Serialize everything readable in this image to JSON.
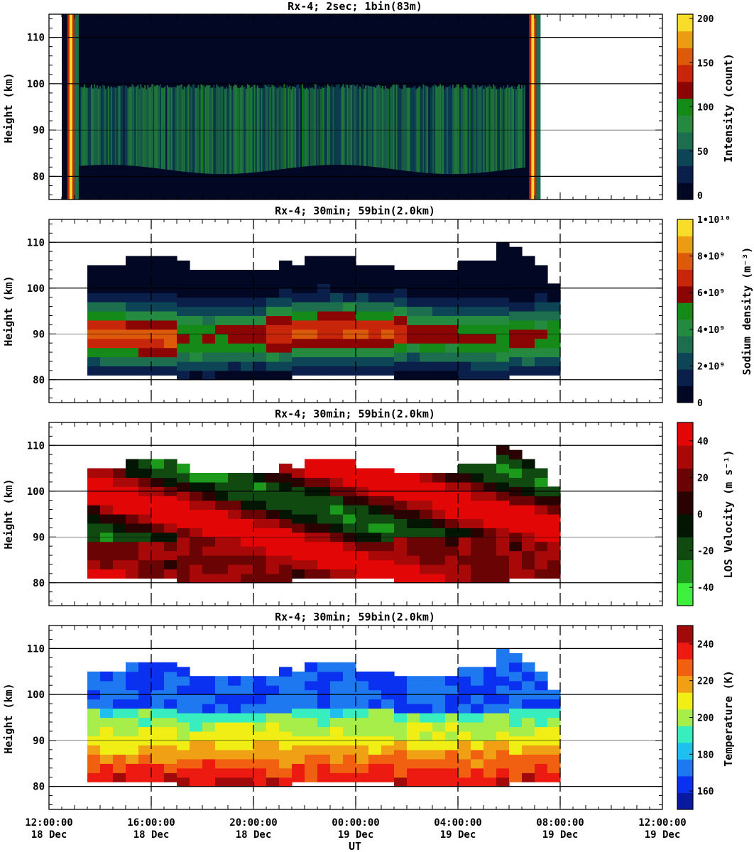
{
  "figure": {
    "x_label": "UT",
    "x_ticks": [
      {
        "time": "12:00:00",
        "date": "18 Dec"
      },
      {
        "time": "16:00:00",
        "date": "18 Dec"
      },
      {
        "time": "20:00:00",
        "date": "18 Dec"
      },
      {
        "time": "00:00:00",
        "date": "19 Dec"
      },
      {
        "time": "04:00:00",
        "date": "19 Dec"
      },
      {
        "time": "08:00:00",
        "date": "19 Dec"
      },
      {
        "time": "12:00:00",
        "date": "19 Dec"
      }
    ]
  },
  "chart_data": [
    {
      "type": "heatmap",
      "title": "Rx-4;  2sec; 1bin(83m)",
      "xlabel": "",
      "ylabel": "Height (km)",
      "x_range_hours_ut": [
        12,
        36
      ],
      "data_extent_hours_ut": [
        12.5,
        31.2
      ],
      "ylim": [
        75,
        115
      ],
      "y_ticks": [
        80,
        90,
        100,
        110
      ],
      "colorbar": {
        "label": "Intensity (count)",
        "range": [
          0,
          200
        ],
        "ticks": [
          "0",
          "50",
          "100",
          "150",
          "200"
        ],
        "colors": [
          "#020824",
          "#0a1f4a",
          "#0d4556",
          "#1d6e4e",
          "#238a3f",
          "#168a18",
          "#8c0505",
          "#c8260a",
          "#dc5a0a",
          "#ec9c14",
          "#f8dc2a"
        ]
      },
      "features": {
        "sodium_layer_km": [
          80,
          100
        ],
        "high_intensity_edges_hours_ut": [
          12.83,
          30.9
        ]
      }
    },
    {
      "type": "heatmap",
      "title": "Rx-4; 30min; 59bin(2.0km)",
      "xlabel": "",
      "ylabel": "Height (km)",
      "x_range_hours_ut": [
        12,
        36
      ],
      "data_extent_hours_ut": [
        13.5,
        32.0
      ],
      "ylim": [
        75,
        115
      ],
      "y_ticks": [
        80,
        90,
        100,
        110
      ],
      "colorbar": {
        "label": "Sodium density (m⁻³)",
        "range": [
          0,
          10000000000.0
        ],
        "ticks": [
          "0",
          "2•10⁹",
          "4•10⁹",
          "6•10⁹",
          "8•10⁹",
          "1•10¹⁰"
        ],
        "colors": [
          "#020824",
          "#0a1f4a",
          "#0d4556",
          "#1d6e4e",
          "#238a3f",
          "#168a18",
          "#8c0505",
          "#c8260a",
          "#dc5a0a",
          "#ec9c14",
          "#f8dc2a"
        ]
      },
      "features": {
        "peak_density_height_km": 90,
        "peak_density_periods_hours_ut": [
          [
            13.5,
            16.5
          ],
          [
            20,
            26
          ]
        ]
      }
    },
    {
      "type": "heatmap",
      "title": "Rx-4; 30min; 59bin(2.0km)",
      "xlabel": "",
      "ylabel": "Height (km)",
      "x_range_hours_ut": [
        12,
        36
      ],
      "data_extent_hours_ut": [
        13.5,
        32.0
      ],
      "ylim": [
        75,
        115
      ],
      "y_ticks": [
        80,
        90,
        100,
        110
      ],
      "colorbar": {
        "label": "LOS Velocity (m s⁻¹)",
        "range": [
          -50,
          50
        ],
        "ticks": [
          "-40",
          "-20",
          "0",
          "20",
          "40"
        ],
        "colors": [
          "#3ef03c",
          "#1c9a1c",
          "#104a10",
          "#031503",
          "#2a0202",
          "#6a0404",
          "#a80808",
          "#e20606"
        ]
      },
      "features": {
        "downward_phase_progression": true
      }
    },
    {
      "type": "heatmap",
      "title": "Rx-4; 30min; 59bin(2.0km)",
      "xlabel": "",
      "ylabel": "Height (km)",
      "x_range_hours_ut": [
        12,
        36
      ],
      "data_extent_hours_ut": [
        13.5,
        32.0
      ],
      "ylim": [
        75,
        115
      ],
      "y_ticks": [
        80,
        90,
        100,
        110
      ],
      "colorbar": {
        "label": "Temperature (K)",
        "range": [
          150,
          250
        ],
        "ticks": [
          "160",
          "180",
          "200",
          "220",
          "240"
        ],
        "colors": [
          "#0a1aa0",
          "#0a30f0",
          "#1e78f0",
          "#20c0ee",
          "#38eebe",
          "#a8ee4a",
          "#f0ee14",
          "#f0a014",
          "#f06010",
          "#ec1a10",
          "#a00a0a"
        ]
      },
      "features": {
        "warm_layer_km": [
          80,
          88
        ],
        "cold_layer_km": [
          96,
          106
        ]
      }
    }
  ]
}
